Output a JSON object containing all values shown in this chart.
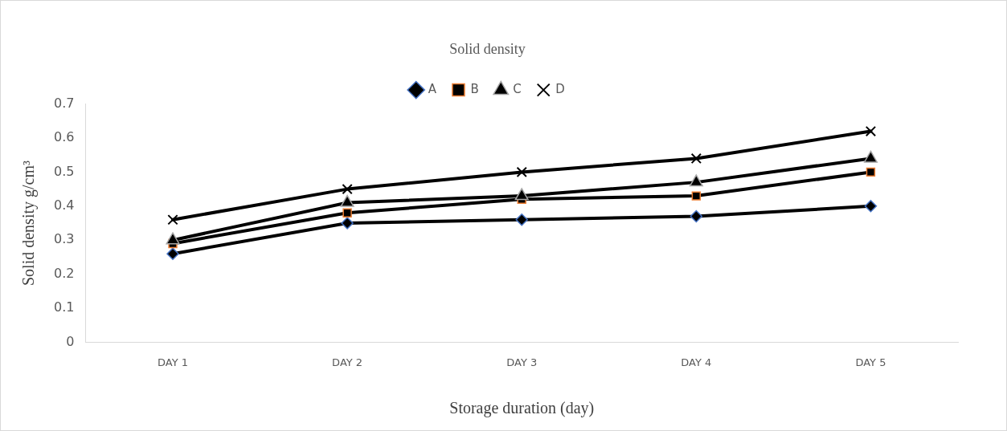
{
  "chart_data": {
    "type": "line",
    "title": "Solid density",
    "xlabel": "Storage duration (day)",
    "ylabel": "Solid density g/cm³",
    "categories": [
      "DAY 1",
      "DAY 2",
      "DAY 3",
      "DAY 4",
      "DAY 5"
    ],
    "series": [
      {
        "name": "A",
        "color": "#000000",
        "marker": "diamond",
        "values": [
          0.26,
          0.35,
          0.36,
          0.37,
          0.4
        ]
      },
      {
        "name": "B",
        "color": "#000000",
        "marker": "square",
        "values": [
          0.29,
          0.38,
          0.42,
          0.43,
          0.5
        ]
      },
      {
        "name": "C",
        "color": "#000000",
        "marker": "triangle",
        "values": [
          0.3,
          0.41,
          0.43,
          0.47,
          0.54
        ]
      },
      {
        "name": "D",
        "color": "#000000",
        "marker": "cross",
        "values": [
          0.36,
          0.45,
          0.5,
          0.54,
          0.62
        ]
      }
    ],
    "ylim": [
      0,
      0.7
    ],
    "yticks": [
      0,
      0.1,
      0.2,
      0.3,
      0.4,
      0.5,
      0.6,
      0.7
    ],
    "grid": false,
    "legend": "top"
  }
}
